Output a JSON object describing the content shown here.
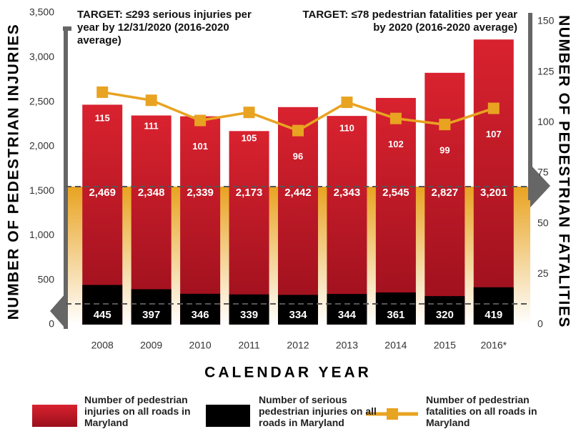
{
  "chart_data": {
    "type": "bar",
    "categories": [
      "2008",
      "2009",
      "2010",
      "2011",
      "2012",
      "2013",
      "2014",
      "2015",
      "2016*"
    ],
    "series": [
      {
        "name": "Number of pedestrian injuries on all roads in Maryland",
        "color": "#c8102e",
        "values": [
          2469,
          2348,
          2339,
          2173,
          2442,
          2343,
          2545,
          2827,
          3201
        ],
        "value_labels": [
          "2,469",
          "2,348",
          "2,339",
          "2,173",
          "2,442",
          "2,343",
          "2,545",
          "2,827",
          "3,201"
        ]
      },
      {
        "name": "Number of serious pedestrian injuries on all roads in Maryland",
        "color": "#000000",
        "values": [
          445,
          397,
          346,
          339,
          334,
          344,
          361,
          320,
          419
        ]
      },
      {
        "name": "Number of pedestrian fatalities on all roads in Maryland",
        "color": "#e8a321",
        "axis": "y2",
        "values": [
          115,
          111,
          101,
          105,
          96,
          110,
          102,
          99,
          107
        ]
      }
    ],
    "ylabel": "NUMBER OF PEDESTRIAN INJURIES",
    "y2label": "NUMBER OF PEDESTRIAN FATALITIES",
    "xlabel": "CALENDAR YEAR",
    "ylim": [
      0,
      3500
    ],
    "yticks": [
      0,
      500,
      {
        "value": 1000,
        "label": "1,000"
      },
      {
        "value": 1500,
        "label": "1,500"
      },
      {
        "value": 2000,
        "label": "2,000"
      },
      {
        "value": 2500,
        "label": "2,500"
      },
      {
        "value": 3000,
        "label": "3,000"
      },
      {
        "value": 3500,
        "label": "3,500"
      }
    ],
    "y2lim": [
      0,
      150
    ],
    "y2ticks": [
      0,
      25,
      50,
      75,
      100,
      125,
      150
    ],
    "annotations": [
      "TARGET: ≤293 serious injuries per year by 12/31/2020 (2016-2020 average)",
      "TARGET: ≤78 pedestrian fatalities per year by 2020 (2016-2020 average)"
    ]
  }
}
